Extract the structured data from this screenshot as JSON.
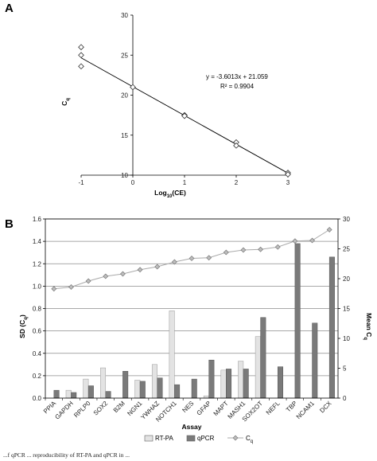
{
  "caption": "...f qPCR ... reproducibility of RT-PA and qPCR in ...",
  "chart_data": [
    {
      "panel": "A",
      "type": "scatter",
      "xlabel": "Log10(CE)",
      "xlabel_main": "Log",
      "xlabel_sub": "10",
      "xlabel_rest": "(CE)",
      "ylabel": "Cq",
      "ylabel_main": "C",
      "ylabel_sub": "q",
      "xlim": [
        -1,
        3
      ],
      "ylim": [
        10,
        30
      ],
      "xticks": [
        "-1",
        "0",
        "1",
        "2",
        "3"
      ],
      "yticks": [
        "10",
        "15",
        "20",
        "25",
        "30"
      ],
      "points": [
        {
          "x": -1,
          "y": 26.0
        },
        {
          "x": -1,
          "y": 25.0
        },
        {
          "x": -1,
          "y": 23.6
        },
        {
          "x": 0,
          "y": 21.0
        },
        {
          "x": 1,
          "y": 17.5
        },
        {
          "x": 1,
          "y": 17.4
        },
        {
          "x": 2,
          "y": 14.1
        },
        {
          "x": 2,
          "y": 13.7
        },
        {
          "x": 3,
          "y": 10.3
        },
        {
          "x": 3,
          "y": 10.1
        }
      ],
      "fit": {
        "slope": -3.6013,
        "intercept": 21.059
      },
      "equation": "y = -3.6013x + 21.059",
      "r2": "R² = 0.9904"
    },
    {
      "panel": "B",
      "type": "bar",
      "xlabel": "Assay",
      "ylabel_left": "SD (Cq)",
      "ylabel_left_main": "SD (C",
      "ylabel_left_sub": "q",
      "ylabel_left_end": ")",
      "ylabel_right": "Mean Cq",
      "ylabel_right_main": "Mean C",
      "ylabel_right_sub": "q",
      "ylim_left": [
        0,
        1.6
      ],
      "ylim_right": [
        0,
        30
      ],
      "yticks_left": [
        "0.0",
        "0.2",
        "0.4",
        "0.6",
        "0.8",
        "1.0",
        "1.2",
        "1.4",
        "1.6"
      ],
      "yticks_right": [
        "0",
        "5",
        "10",
        "15",
        "20",
        "25",
        "30"
      ],
      "grid": true,
      "categories": [
        "PPIA",
        "GAPDH",
        "RPLP0",
        "SOX2",
        "B2M",
        "NGN1",
        "YWHAZ",
        "NOTCH1",
        "NES",
        "GFAP",
        "MAPT",
        "MASH1",
        "SOX2OT",
        "NEFL",
        "TBP",
        "NCAM1",
        "DCX"
      ],
      "series": [
        {
          "name": "RT-PA",
          "axis": "left",
          "color": "#e3e3e3",
          "values": [
            0,
            0.07,
            0.17,
            0.27,
            0,
            0.16,
            0.3,
            0.78,
            0,
            0.02,
            0.25,
            0.33,
            0.55,
            0,
            0,
            0,
            0
          ]
        },
        {
          "name": "qPCR",
          "axis": "left",
          "color": "#7a7a7a",
          "values": [
            0.07,
            0.05,
            0.11,
            0.06,
            0.24,
            0.15,
            0.18,
            0.12,
            0.17,
            0.34,
            0.26,
            0.26,
            0.72,
            0.28,
            1.38,
            0.67,
            1.26
          ]
        },
        {
          "name": "Cq",
          "axis": "right",
          "type": "line",
          "color": "#aaaaaa",
          "values": [
            18.3,
            18.6,
            19.6,
            20.4,
            20.8,
            21.5,
            22.0,
            22.8,
            23.4,
            23.5,
            24.4,
            24.8,
            24.9,
            25.3,
            26.3,
            26.4,
            28.2
          ]
        }
      ],
      "legend": [
        {
          "label": "RT-PA",
          "kind": "bar",
          "color": "#e3e3e3"
        },
        {
          "label": "qPCR",
          "kind": "bar",
          "color": "#7a7a7a"
        },
        {
          "label": "Cq",
          "label_main": "C",
          "label_sub": "q",
          "kind": "line",
          "color": "#aaaaaa"
        }
      ],
      "legend_position": "bottom"
    }
  ]
}
